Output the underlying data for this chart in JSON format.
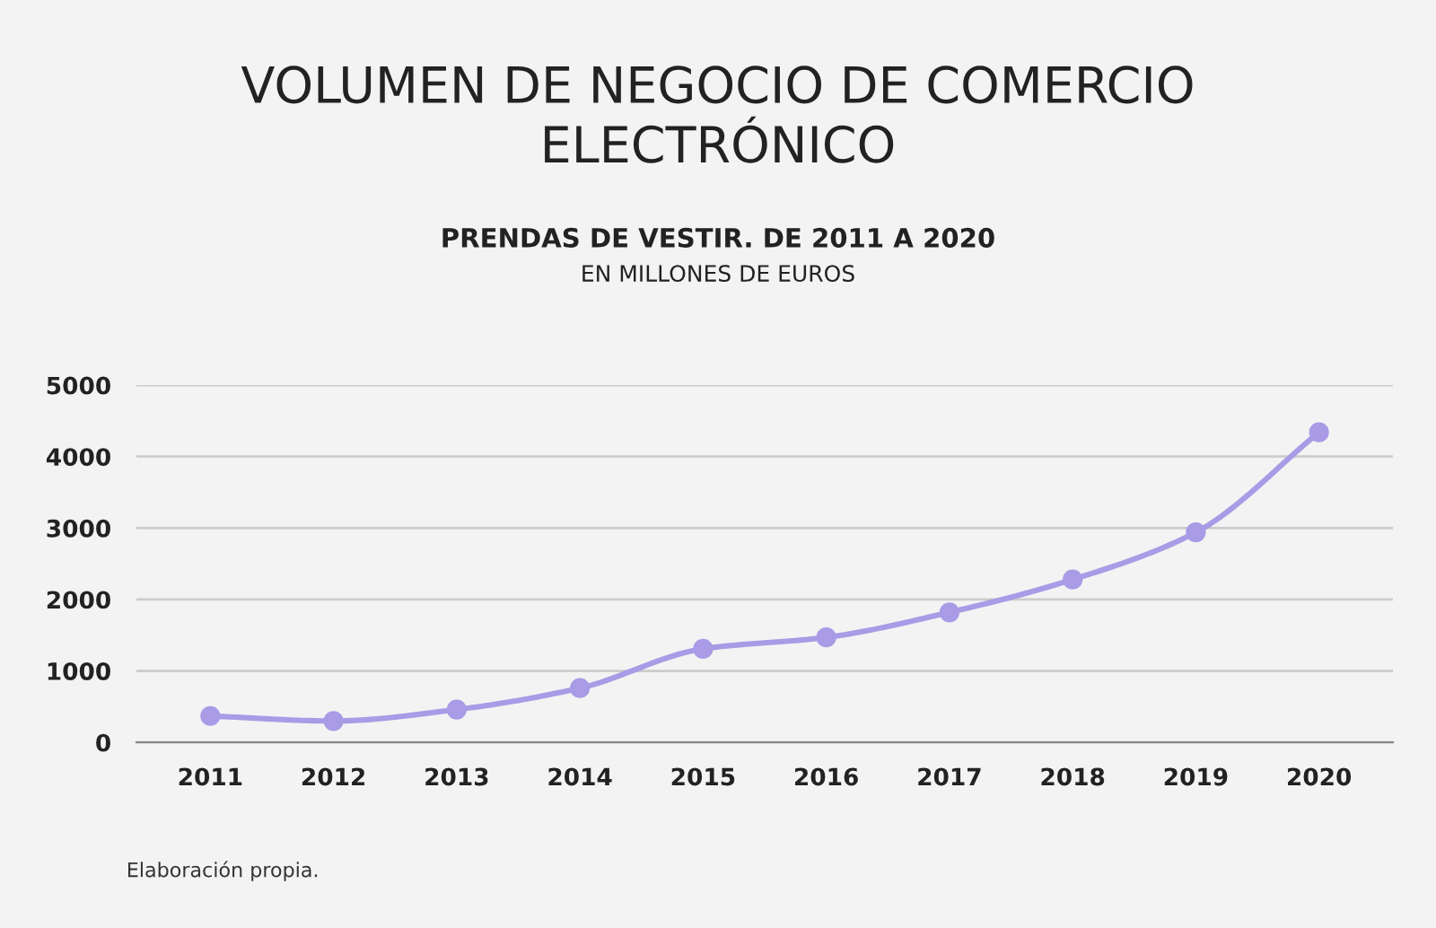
{
  "chart_data": {
    "type": "line",
    "title": "VOLUMEN DE NEGOCIO DE COMERCIO\nELECTRÓNICO",
    "subtitle": "PRENDAS DE VESTIR. DE 2011 A 2020\nEN MILLONES DE EUROS",
    "categories": [
      "2011",
      "2012",
      "2013",
      "2014",
      "2015",
      "2016",
      "2017",
      "2018",
      "2019",
      "2020"
    ],
    "series": [
      {
        "color": "#a99be6",
        "values": [
          370,
          300,
          460,
          760,
          1310,
          1470,
          1820,
          2280,
          2940,
          4340
        ]
      }
    ],
    "ylim": [
      0,
      5000
    ],
    "yticks": [
      0,
      1000,
      2000,
      3000,
      4000,
      5000
    ],
    "grid": "y",
    "marker": "circle",
    "line_style": "solid",
    "annotations": [
      "Elaboración propia."
    ]
  }
}
